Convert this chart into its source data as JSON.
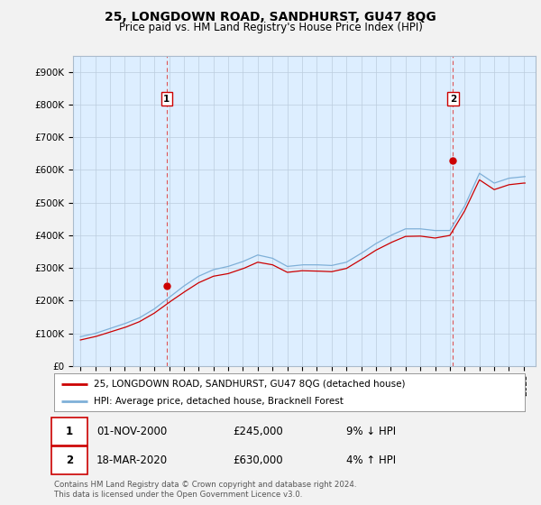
{
  "title": "25, LONGDOWN ROAD, SANDHURST, GU47 8QG",
  "subtitle": "Price paid vs. HM Land Registry's House Price Index (HPI)",
  "legend_label_red": "25, LONGDOWN ROAD, SANDHURST, GU47 8QG (detached house)",
  "legend_label_blue": "HPI: Average price, detached house, Bracknell Forest",
  "annotation1_date": "01-NOV-2000",
  "annotation1_price": "£245,000",
  "annotation1_hpi": "9% ↓ HPI",
  "annotation2_date": "18-MAR-2020",
  "annotation2_price": "£630,000",
  "annotation2_hpi": "4% ↑ HPI",
  "footer": "Contains HM Land Registry data © Crown copyright and database right 2024.\nThis data is licensed under the Open Government Licence v3.0.",
  "ylim": [
    0,
    950000
  ],
  "yticks": [
    0,
    100000,
    200000,
    300000,
    400000,
    500000,
    600000,
    700000,
    800000,
    900000
  ],
  "ytick_labels": [
    "£0",
    "£100K",
    "£200K",
    "£300K",
    "£400K",
    "£500K",
    "£600K",
    "£700K",
    "£800K",
    "£900K"
  ],
  "xlim_start": 1994.5,
  "xlim_end": 2025.8,
  "xticks": [
    1995,
    1996,
    1997,
    1998,
    1999,
    2000,
    2001,
    2002,
    2003,
    2004,
    2005,
    2006,
    2007,
    2008,
    2009,
    2010,
    2011,
    2012,
    2013,
    2014,
    2015,
    2016,
    2017,
    2018,
    2019,
    2020,
    2021,
    2022,
    2023,
    2024,
    2025
  ],
  "red_color": "#cc0000",
  "blue_color": "#7fb0d8",
  "vline_color": "#dd4444",
  "plot_bg_color": "#ddeeff",
  "grid_color": "#bbccdd",
  "purchase1_x": 2000.83,
  "purchase1_y": 245000,
  "purchase2_x": 2020.21,
  "purchase2_y": 630000
}
